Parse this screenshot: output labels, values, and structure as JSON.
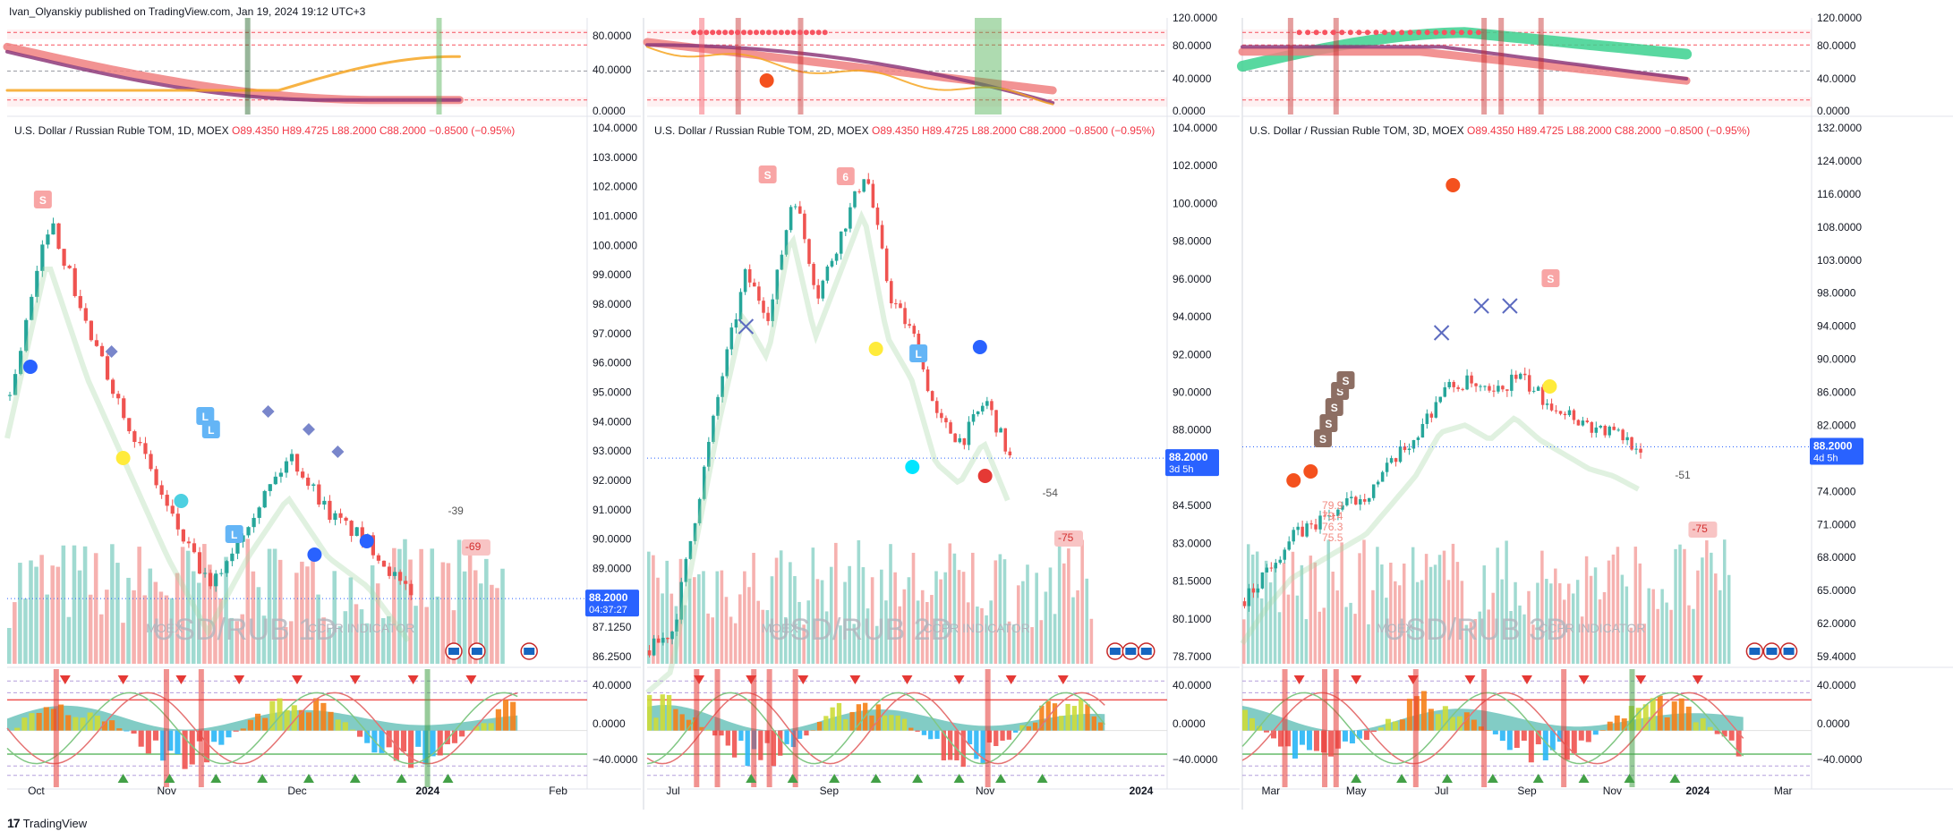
{
  "attribution": "Ivan_Olyanskiy published on TradingView.com, Jan 19, 2024 19:12 UTC+3",
  "footer_brand": "TradingView",
  "footer_logo": "17",
  "colors": {
    "up": "#26a69a",
    "down": "#ef5350",
    "bg": "#ffffff",
    "grid": "#f0f3fa",
    "price_label": "#2962ff",
    "volume_up": "#8fd3c9",
    "volume_down": "#f5a3a1"
  },
  "panels": [
    {
      "id": "1d",
      "header": {
        "symbol": "U.S. Dollar / Russian Ruble TOM, 1D, MOEX",
        "o": "O89.4350",
        "h": "H89.4725",
        "l": "L88.2000",
        "c": "C88.2000",
        "chg": "−0.8500 (−0.95%)"
      },
      "watermark": {
        "exchange": "MOEX",
        "title": "USD/RUB 1D",
        "indicator": "CCPR INDICATOR"
      },
      "top_axis": [
        "80.0000",
        "40.0000",
        "0.0000"
      ],
      "price_axis": [
        "104.0000",
        "103.0000",
        "102.0000",
        "101.0000",
        "100.0000",
        "99.0000",
        "98.0000",
        "97.0000",
        "96.0000",
        "95.0000",
        "94.0000",
        "93.0000",
        "92.0000",
        "91.0000",
        "90.0000",
        "89.0000",
        "88.0000",
        "87.1250",
        "86.2500"
      ],
      "price_label": {
        "value": "88.2000",
        "countdown": "04:37:27"
      },
      "osc_axis": [
        "40.0000",
        "0.0000",
        "−40.0000"
      ],
      "time_axis": [
        "Oct",
        "Nov",
        "Dec",
        "2024",
        "Feb"
      ],
      "annotations": [
        "-39",
        "-69"
      ],
      "markers": [
        "S",
        "L",
        "L",
        "L"
      ],
      "chart_data": {
        "type": "candlestick",
        "ylim": [
          86.25,
          104.0
        ],
        "trend": [
          95,
          101,
          97,
          94,
          91,
          88.5,
          91,
          93,
          91,
          90,
          88.2
        ]
      }
    },
    {
      "id": "2d",
      "header": {
        "symbol": "U.S. Dollar / Russian Ruble TOM, 2D, MOEX",
        "o": "O89.4350",
        "h": "H89.4725",
        "l": "L88.2000",
        "c": "C88.2000",
        "chg": "−0.8500 (−0.95%)"
      },
      "watermark": {
        "exchange": "MOEX",
        "title": "USD/RUB 2D",
        "indicator": "CCPR INDICATOR"
      },
      "top_axis": [
        "120.0000",
        "80.0000",
        "40.0000",
        "0.0000"
      ],
      "price_axis": [
        "104.0000",
        "102.0000",
        "100.0000",
        "98.0000",
        "96.0000",
        "94.0000",
        "92.0000",
        "90.0000",
        "88.0000",
        "86.0000",
        "84.5000",
        "83.0000",
        "81.5000",
        "80.1000",
        "78.7000"
      ],
      "price_label": {
        "value": "88.2000",
        "countdown": "3d 5h"
      },
      "osc_axis": [
        "40.0000",
        "0.0000",
        "−40.0000"
      ],
      "time_axis": [
        "Jul",
        "Sep",
        "Nov",
        "2024"
      ],
      "annotations": [
        "-54",
        "-75"
      ],
      "markers": [
        "S",
        "6",
        "L"
      ],
      "chart_data": {
        "type": "candlestick",
        "ylim": [
          78.7,
          104.0
        ],
        "trend": [
          79,
          80,
          86,
          92,
          97,
          95,
          101,
          96,
          99,
          102,
          96,
          94,
          90,
          89,
          91,
          88.2
        ]
      }
    },
    {
      "id": "3d",
      "header": {
        "symbol": "U.S. Dollar / Russian Ruble TOM, 3D, MOEX",
        "o": "O89.4350",
        "h": "H89.4725",
        "l": "L88.2000",
        "c": "C88.2000",
        "chg": "−0.8500 (−0.95%)"
      },
      "watermark": {
        "exchange": "MOEX",
        "title": "USD/RUB 3D",
        "indicator": "CCPR INDICATOR"
      },
      "top_axis": [
        "120.0000",
        "80.0000",
        "40.0000",
        "0.0000"
      ],
      "price_axis": [
        "132.0000",
        "124.0000",
        "116.0000",
        "108.0000",
        "103.0000",
        "98.0000",
        "94.0000",
        "90.0000",
        "86.0000",
        "82.0000",
        "78.0000",
        "74.0000",
        "71.0000",
        "68.0000",
        "65.0000",
        "62.0000",
        "59.4000"
      ],
      "price_label": {
        "value": "88.2000",
        "countdown": "4d 5h"
      },
      "osc_axis": [
        "40.0000",
        "0.0000",
        "−40.0000"
      ],
      "time_axis": [
        "Mar",
        "May",
        "Jul",
        "Sep",
        "Nov",
        "2024",
        "Mar"
      ],
      "annotations": [
        "-51",
        "-75",
        "79.9",
        "79.4",
        "76.3",
        "75.5"
      ],
      "markers": [
        "S",
        "S",
        "S",
        "S",
        "S",
        "S"
      ],
      "chart_data": {
        "type": "candlestick",
        "ylim": [
          59.4,
          132.0
        ],
        "trend": [
          67,
          72,
          76,
          78,
          80,
          82,
          86,
          90,
          96,
          97,
          95,
          98,
          95,
          93,
          91,
          90,
          88.2
        ]
      }
    }
  ]
}
